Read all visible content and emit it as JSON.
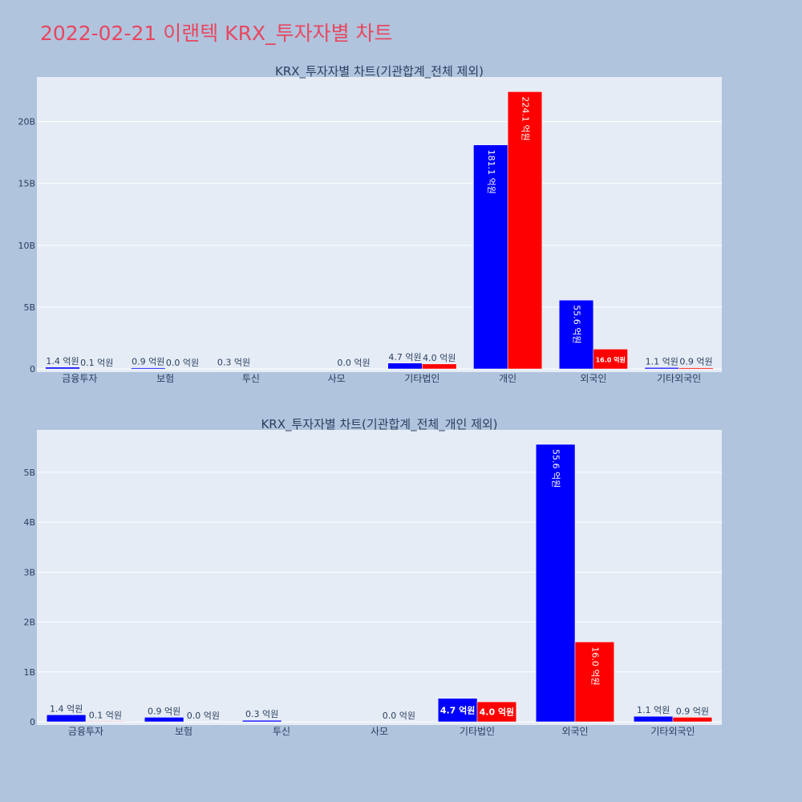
{
  "page": {
    "title": "2022-02-21 이랜텍 KRX_투자자별 차트"
  },
  "colors": {
    "buy": "#0000ff",
    "sell": "#ff0000",
    "plot_bg": "#e5ecf6",
    "page_bg": "#b0c4de",
    "title": "#e8475f"
  },
  "chart_data": [
    {
      "type": "bar",
      "title": "KRX_투자자별 차트(기관합계_전체 제외)",
      "categories": [
        "금융투자",
        "보험",
        "투신",
        "사모",
        "기타법인",
        "개인",
        "외국인",
        "기타외국인"
      ],
      "series": [
        {
          "values": [
            0.14,
            0.09,
            0.03,
            0,
            0.47,
            18.11,
            5.56,
            0.11
          ],
          "labels": [
            "1.4 억원",
            "0.9 억원",
            "0.3 억원",
            "",
            "4.7 억원",
            "181.1 억원",
            "55.6 억원",
            "1.1 억원"
          ]
        },
        {
          "values": [
            0.01,
            0.0,
            0,
            0.0,
            0.4,
            22.41,
            1.6,
            0.09
          ],
          "labels": [
            "0.1 억원",
            "0.0 억원",
            "",
            "0.0 억원",
            "4.0 억원",
            "224.1 억원",
            "16.0 억원",
            "0.9 억원"
          ]
        }
      ],
      "ylim": [
        0,
        23.6
      ],
      "yticks": [
        0,
        5,
        10,
        15,
        20
      ],
      "ytick_labels": [
        "0",
        "5B",
        "10B",
        "15B",
        "20B"
      ],
      "grid": true
    },
    {
      "type": "bar",
      "title": "KRX_투자자별 차트(기관합계_전체_개인 제외)",
      "categories": [
        "금융투자",
        "보험",
        "투신",
        "사모",
        "기타법인",
        "외국인",
        "기타외국인"
      ],
      "series": [
        {
          "values": [
            0.14,
            0.09,
            0.03,
            0,
            0.47,
            5.56,
            0.11
          ],
          "labels": [
            "1.4 억원",
            "0.9 억원",
            "0.3 억원",
            "",
            "4.7 억원",
            "55.6 억원",
            "1.1 억원"
          ]
        },
        {
          "values": [
            0.01,
            0.0,
            0,
            0.0,
            0.4,
            1.6,
            0.09
          ],
          "labels": [
            "0.1 억원",
            "0.0 억원",
            "",
            "0.0 억원",
            "4.0 억원",
            "16.0 억원",
            "0.9 억원"
          ]
        }
      ],
      "ylim": [
        0,
        5.85
      ],
      "yticks": [
        0,
        1,
        2,
        3,
        4,
        5
      ],
      "ytick_labels": [
        "0",
        "1B",
        "2B",
        "3B",
        "4B",
        "5B"
      ],
      "grid": true
    }
  ]
}
